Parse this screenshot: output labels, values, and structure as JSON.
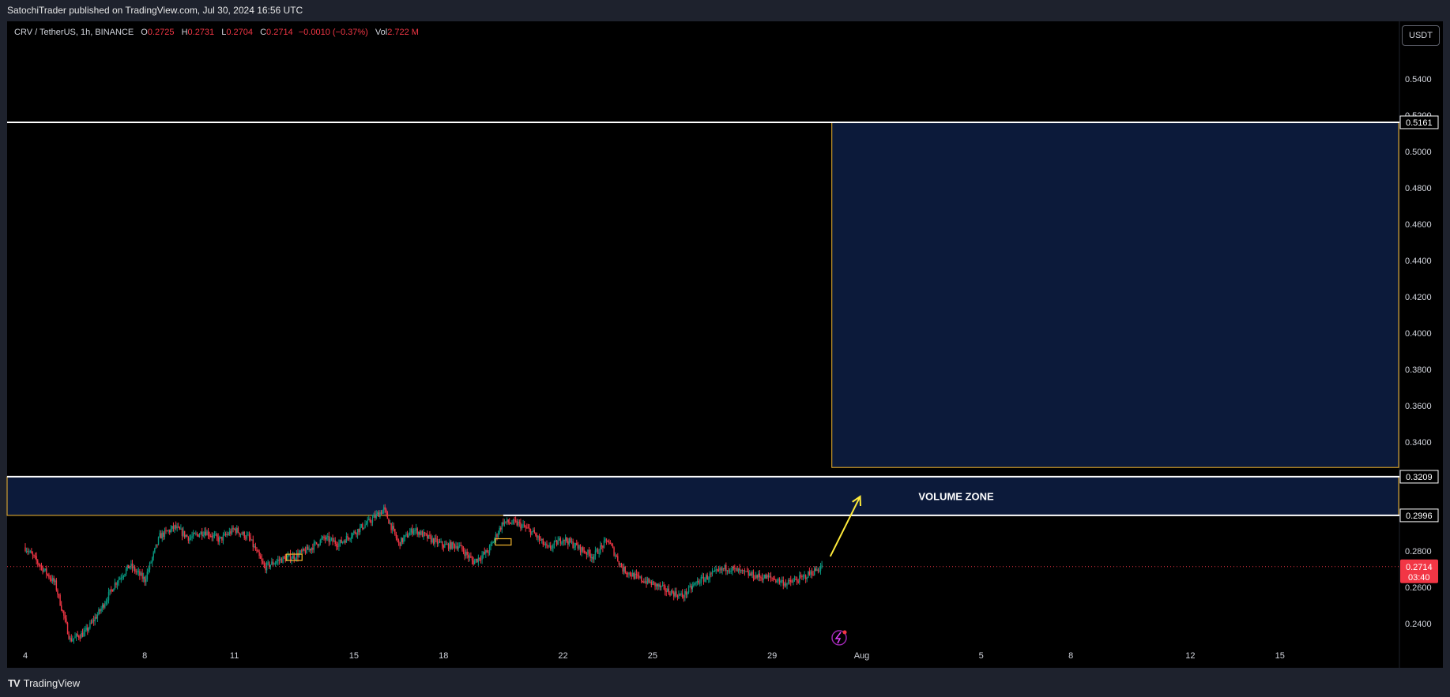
{
  "header": {
    "publisher": "SatochiTrader published on TradingView.com, Jul 30, 2024 16:56 UTC"
  },
  "legend": {
    "symbol": "CRV / TetherUS, 1h, BINANCE",
    "open_label": "O",
    "open": "0.2725",
    "high_label": "H",
    "high": "0.2731",
    "low_label": "L",
    "low": "0.2704",
    "close_label": "C",
    "close": "0.2714",
    "change": "−0.0010 (−0.37%)",
    "vol_label": "Vol",
    "vol": "2.722 M"
  },
  "currency_button": "USDT",
  "footer": {
    "brand": "TradingView"
  },
  "colors": {
    "up": "#089981",
    "down": "#f23645",
    "zone_fill": "#0c1a3a",
    "zone_border": "#f5b82e",
    "level": "#ffffff",
    "arrow": "#ffeb3b"
  },
  "chart_data": {
    "type": "candlestick",
    "timeframe": "1h",
    "x_range": [
      "2024-07-04",
      "2024-08-19"
    ],
    "ylim": [
      0.226,
      0.568
    ],
    "y_ticks": [
      "0.2400",
      "0.2600",
      "0.2800",
      "0.3000",
      "0.3200",
      "0.3400",
      "0.3600",
      "0.3800",
      "0.4000",
      "0.4200",
      "0.4400",
      "0.4600",
      "0.4800",
      "0.5000",
      "0.5200",
      "0.5400"
    ],
    "x_ticks": [
      {
        "date": "2024-07-04",
        "label": "4"
      },
      {
        "date": "2024-07-08",
        "label": "8"
      },
      {
        "date": "2024-07-11",
        "label": "11"
      },
      {
        "date": "2024-07-15",
        "label": "15"
      },
      {
        "date": "2024-07-18",
        "label": "18"
      },
      {
        "date": "2024-07-22",
        "label": "22"
      },
      {
        "date": "2024-07-25",
        "label": "25"
      },
      {
        "date": "2024-07-29",
        "label": "29"
      },
      {
        "date": "2024-08-01",
        "label": "Aug"
      },
      {
        "date": "2024-08-05",
        "label": "5"
      },
      {
        "date": "2024-08-08",
        "label": "8"
      },
      {
        "date": "2024-08-12",
        "label": "12"
      },
      {
        "date": "2024-08-15",
        "label": "15"
      }
    ],
    "price_path": [
      [
        "2024-07-04",
        0.282
      ],
      [
        "2024-07-04T12",
        0.272
      ],
      [
        "2024-07-05",
        0.262
      ],
      [
        "2024-07-05T12",
        0.231
      ],
      [
        "2024-07-06",
        0.235
      ],
      [
        "2024-07-06T12",
        0.247
      ],
      [
        "2024-07-07",
        0.262
      ],
      [
        "2024-07-07T12",
        0.272
      ],
      [
        "2024-07-08",
        0.264
      ],
      [
        "2024-07-08T12",
        0.288
      ],
      [
        "2024-07-09",
        0.293
      ],
      [
        "2024-07-09T12",
        0.287
      ],
      [
        "2024-07-10",
        0.291
      ],
      [
        "2024-07-10T12",
        0.286
      ],
      [
        "2024-07-11",
        0.292
      ],
      [
        "2024-07-11T12",
        0.287
      ],
      [
        "2024-07-12",
        0.271
      ],
      [
        "2024-07-12T12",
        0.275
      ],
      [
        "2024-07-13",
        0.277
      ],
      [
        "2024-07-13T12",
        0.281
      ],
      [
        "2024-07-14",
        0.287
      ],
      [
        "2024-07-14T12",
        0.284
      ],
      [
        "2024-07-15",
        0.29
      ],
      [
        "2024-07-15T12",
        0.296
      ],
      [
        "2024-07-16",
        0.303
      ],
      [
        "2024-07-16T12",
        0.284
      ],
      [
        "2024-07-17",
        0.292
      ],
      [
        "2024-07-17T12",
        0.287
      ],
      [
        "2024-07-18",
        0.283
      ],
      [
        "2024-07-18T12",
        0.283
      ],
      [
        "2024-07-19",
        0.274
      ],
      [
        "2024-07-19T12",
        0.28
      ],
      [
        "2024-07-20",
        0.296
      ],
      [
        "2024-07-20T12",
        0.295
      ],
      [
        "2024-07-21",
        0.29
      ],
      [
        "2024-07-21T12",
        0.281
      ],
      [
        "2024-07-22",
        0.287
      ],
      [
        "2024-07-22T12",
        0.282
      ],
      [
        "2024-07-23",
        0.277
      ],
      [
        "2024-07-23T12",
        0.286
      ],
      [
        "2024-07-24",
        0.27
      ],
      [
        "2024-07-24T12",
        0.265
      ],
      [
        "2024-07-25",
        0.262
      ],
      [
        "2024-07-25T12",
        0.258
      ],
      [
        "2024-07-26",
        0.255
      ],
      [
        "2024-07-26T12",
        0.263
      ],
      [
        "2024-07-27",
        0.267
      ],
      [
        "2024-07-27T12",
        0.271
      ],
      [
        "2024-07-28",
        0.268
      ],
      [
        "2024-07-28T12",
        0.266
      ],
      [
        "2024-07-29",
        0.265
      ],
      [
        "2024-07-29T12",
        0.262
      ],
      [
        "2024-07-30",
        0.265
      ],
      [
        "2024-07-30T16",
        0.2714
      ]
    ],
    "markers": [
      {
        "date": "2024-07-13",
        "price": 0.2765
      },
      {
        "date": "2024-07-20",
        "price": 0.285
      }
    ],
    "horizontal_levels": [
      {
        "price": 0.5161,
        "label": "0.5161",
        "from": "2024-07-04"
      },
      {
        "price": 0.3209,
        "label": "0.3209",
        "from": "2024-07-04"
      },
      {
        "price": 0.2996,
        "label": "0.2996",
        "from": "2024-07-20"
      }
    ],
    "zones": [
      {
        "name": "target-zone",
        "from": "2024-07-31",
        "to": "2024-08-19",
        "low": 0.326,
        "high": 0.5161
      },
      {
        "name": "volume-zone",
        "label": "VOLUME ZONE",
        "from": "2024-07-04",
        "to": "2024-08-19",
        "low": 0.2996,
        "high": 0.3209
      }
    ],
    "arrow": {
      "from": [
        "2024-07-31",
        0.277
      ],
      "to": [
        "2024-08-01",
        0.31
      ]
    },
    "last_price": {
      "value": "0.2714",
      "countdown": "03:40"
    }
  }
}
